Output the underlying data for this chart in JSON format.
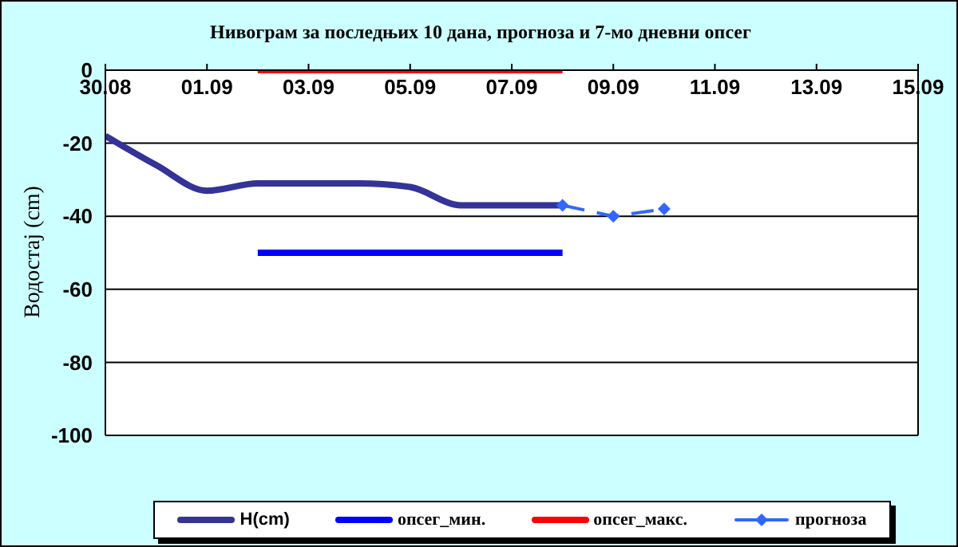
{
  "chart_data": {
    "type": "line",
    "title": "Нивограм за последњих 10 дана, прогноза и 7-мо дневни опсег",
    "ylabel": "Водостај (cm)",
    "xlim": [
      "--08-30",
      "--09-15"
    ],
    "xticks": [
      {
        "value": "--08-30",
        "label": "30.08"
      },
      {
        "value": "--09-01",
        "label": "01.09"
      },
      {
        "value": "--09-03",
        "label": "03.09"
      },
      {
        "value": "--09-05",
        "label": "05.09"
      },
      {
        "value": "--09-07",
        "label": "07.09"
      },
      {
        "value": "--09-09",
        "label": "09.09"
      },
      {
        "value": "--09-11",
        "label": "11.09"
      },
      {
        "value": "--09-13",
        "label": "13.09"
      },
      {
        "value": "--09-15",
        "label": "15.09"
      }
    ],
    "ylim": [
      -100,
      0
    ],
    "yticks": [
      -100,
      -80,
      -60,
      -40,
      -20,
      0
    ],
    "grid": "y",
    "legend": "bottom",
    "marker": "none",
    "line_style": "solid",
    "series": [
      {
        "name": "H(cm)",
        "color": "#333399",
        "x": [
          "--08-30",
          "--08-31",
          "--09-01",
          "--09-02",
          "--09-03",
          "--09-04",
          "--09-05",
          "--09-06",
          "--09-07",
          "--09-08"
        ],
        "values": [
          -18,
          -26,
          -33,
          -31,
          -31,
          -31,
          -32,
          -37,
          -37,
          -37
        ]
      },
      {
        "name": "опсег_мин.",
        "color": "#0000ff",
        "x": [
          "--09-02",
          "--09-08"
        ],
        "values": [
          -50,
          -50
        ]
      },
      {
        "name": "опсег_макс.",
        "color": "#ff0000",
        "x": [
          "--09-02",
          "--09-08"
        ],
        "values": [
          0,
          0
        ]
      },
      {
        "name": "прогноза",
        "color": "#3366ff",
        "marker": "diamond",
        "line_style": "dashed",
        "x": [
          "--09-08",
          "--09-09",
          "--09-10"
        ],
        "values": [
          -37,
          -40,
          -38
        ]
      }
    ]
  }
}
